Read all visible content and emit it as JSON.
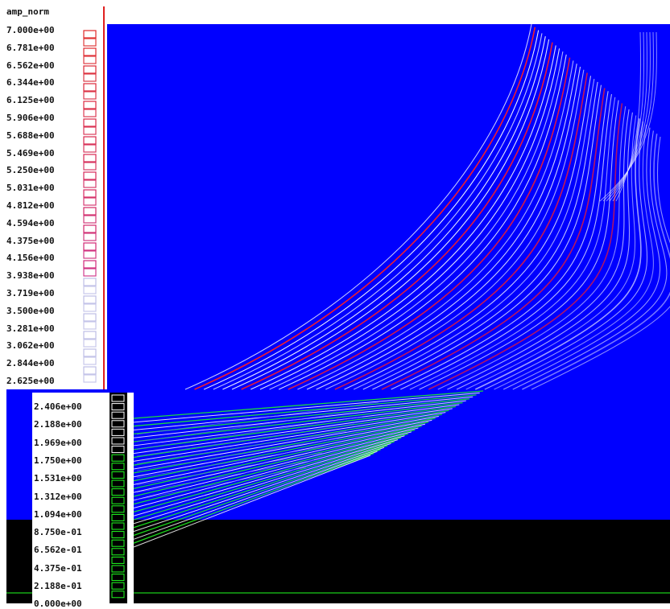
{
  "colorbar_top": {
    "title": "amp_norm",
    "labels": [
      "7.000e+00",
      "6.781e+00",
      "6.562e+00",
      "6.344e+00",
      "6.125e+00",
      "5.906e+00",
      "5.688e+00",
      "5.469e+00",
      "5.250e+00",
      "5.031e+00",
      "4.812e+00",
      "4.594e+00",
      "4.375e+00",
      "4.156e+00",
      "3.938e+00",
      "3.719e+00",
      "3.500e+00",
      "3.281e+00",
      "3.062e+00",
      "2.844e+00",
      "2.625e+00"
    ]
  },
  "colorbar_bottom": {
    "labels": [
      "2.406e+00",
      "2.188e+00",
      "1.969e+00",
      "1.750e+00",
      "1.531e+00",
      "1.312e+00",
      "1.094e+00",
      "8.750e-01",
      "6.562e-01",
      "4.375e-01",
      "2.188e-01",
      "0.000e+00"
    ]
  },
  "colors": {
    "background_field": "#0000ff",
    "positive": "#ff2020",
    "highlight": "#ffffff",
    "overlay_lines": "#20ff20",
    "black_region": "#000000",
    "bar_outline_red": "#e02020"
  }
}
